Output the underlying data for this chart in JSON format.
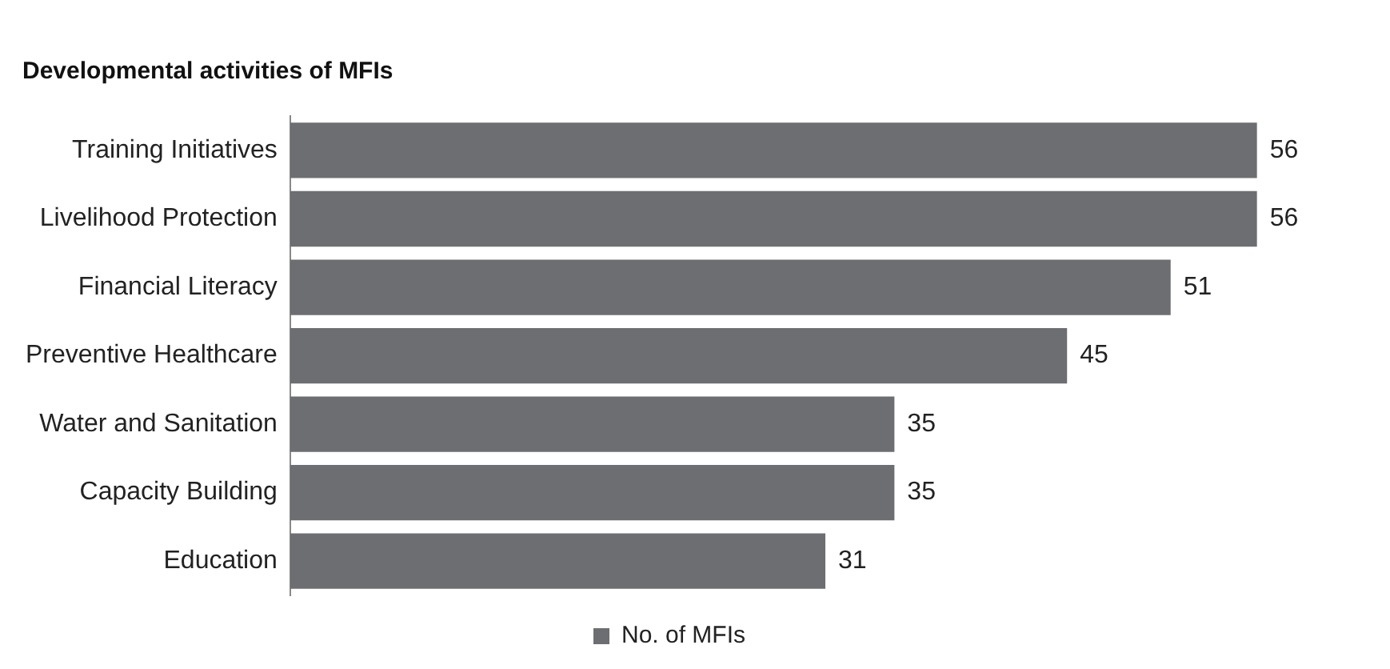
{
  "chart_data": {
    "type": "bar",
    "orientation": "horizontal",
    "title": "Developmental activities of MFIs",
    "categories": [
      "Training Initiatives",
      "Livelihood Protection",
      "Financial Literacy",
      "Preventive Healthcare",
      "Water and Sanitation",
      "Capacity Building",
      "Education"
    ],
    "series": [
      {
        "name": "No. of MFIs",
        "color": "#6d6e71",
        "values": [
          56,
          56,
          51,
          45,
          35,
          35,
          31
        ]
      }
    ],
    "data_labels": true,
    "legend": "bottom",
    "grid": false
  }
}
